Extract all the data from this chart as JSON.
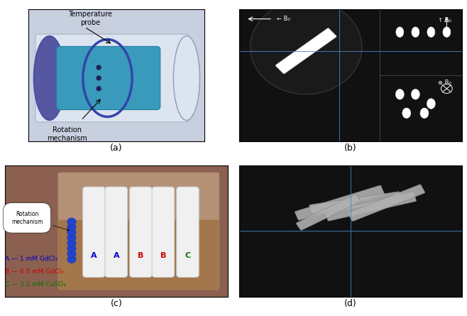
{
  "fig_width": 6.58,
  "fig_height": 4.45,
  "dpi": 100,
  "background_color": "#ffffff",
  "panel_labels": [
    "(a)",
    "(b)",
    "(c)",
    "(d)"
  ],
  "panel_label_fontsize": 9,
  "panel_label_color": "#000000",
  "panel_a": {
    "bg_color": "#d6dce8",
    "cylinder_color": "#6b6fae",
    "inner_color": "#4ab0c8",
    "annotation_temperature": "Temperature\nprobe",
    "annotation_rotation": "Rotation\nmechanism",
    "text_color": "#000000",
    "fontsize": 7
  },
  "panel_b": {
    "bg_color": "#111111",
    "b0_left_text": "← B₀",
    "b0_top_text": "↑ B₀",
    "b0_cross_text": "⊗ B₀",
    "text_color": "#ffffff",
    "line_color": "#4488cc",
    "fontsize": 7
  },
  "panel_c": {
    "label_A_color": "#0000cc",
    "label_B_color": "#cc0000",
    "label_C_color": "#007700",
    "legend_lines": [
      {
        "text": "A –– 1 mM GdCl₃",
        "color": "#0000cc"
      },
      {
        "text": "B –– 0.5 mM GdCl₃",
        "color": "#cc0000"
      },
      {
        "text": "C –– 3.2 mM CuSO₄",
        "color": "#007700"
      }
    ],
    "rotation_label": "Rotation\nmechanism",
    "tube_labels": [
      "A",
      "A",
      "B",
      "B",
      "C"
    ],
    "fontsize": 7,
    "legend_fontsize": 6.5
  },
  "panel_d": {
    "bg_color": "#111111",
    "line_color": "#4488cc",
    "fontsize": 7
  }
}
